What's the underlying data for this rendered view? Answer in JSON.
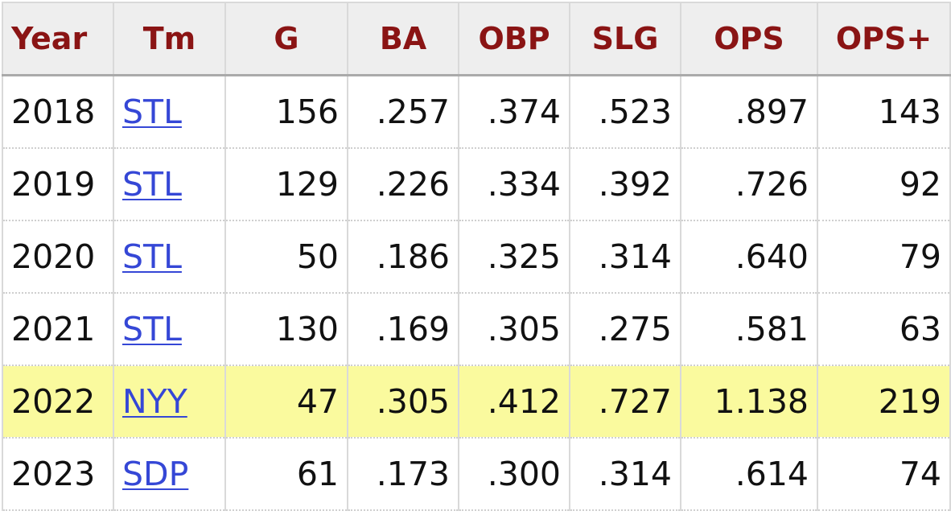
{
  "table": {
    "headers": [
      "Year",
      "Tm",
      "G",
      "BA",
      "OBP",
      "SLG",
      "OPS",
      "OPS+"
    ],
    "rows": [
      {
        "year": "2018",
        "team": "STL",
        "g": "156",
        "ba": ".257",
        "obp": ".374",
        "slg": ".523",
        "ops": ".897",
        "ops_plus": "143",
        "highlight": false
      },
      {
        "year": "2019",
        "team": "STL",
        "g": "129",
        "ba": ".226",
        "obp": ".334",
        "slg": ".392",
        "ops": ".726",
        "ops_plus": "92",
        "highlight": false
      },
      {
        "year": "2020",
        "team": "STL",
        "g": "50",
        "ba": ".186",
        "obp": ".325",
        "slg": ".314",
        "ops": ".640",
        "ops_plus": "79",
        "highlight": false
      },
      {
        "year": "2021",
        "team": "STL",
        "g": "130",
        "ba": ".169",
        "obp": ".305",
        "slg": ".275",
        "ops": ".581",
        "ops_plus": "63",
        "highlight": false
      },
      {
        "year": "2022",
        "team": "NYY",
        "g": "47",
        "ba": ".305",
        "obp": ".412",
        "slg": ".727",
        "ops": "1.138",
        "ops_plus": "219",
        "highlight": true
      },
      {
        "year": "2023",
        "team": "SDP",
        "g": "61",
        "ba": ".173",
        "obp": ".300",
        "slg": ".314",
        "ops": ".614",
        "ops_plus": "74",
        "highlight": false
      }
    ]
  },
  "colors": {
    "header_text": "#8a1414",
    "header_background": "#eeeeee",
    "link": "#3547d6",
    "highlight_row": "#fafa9e"
  }
}
